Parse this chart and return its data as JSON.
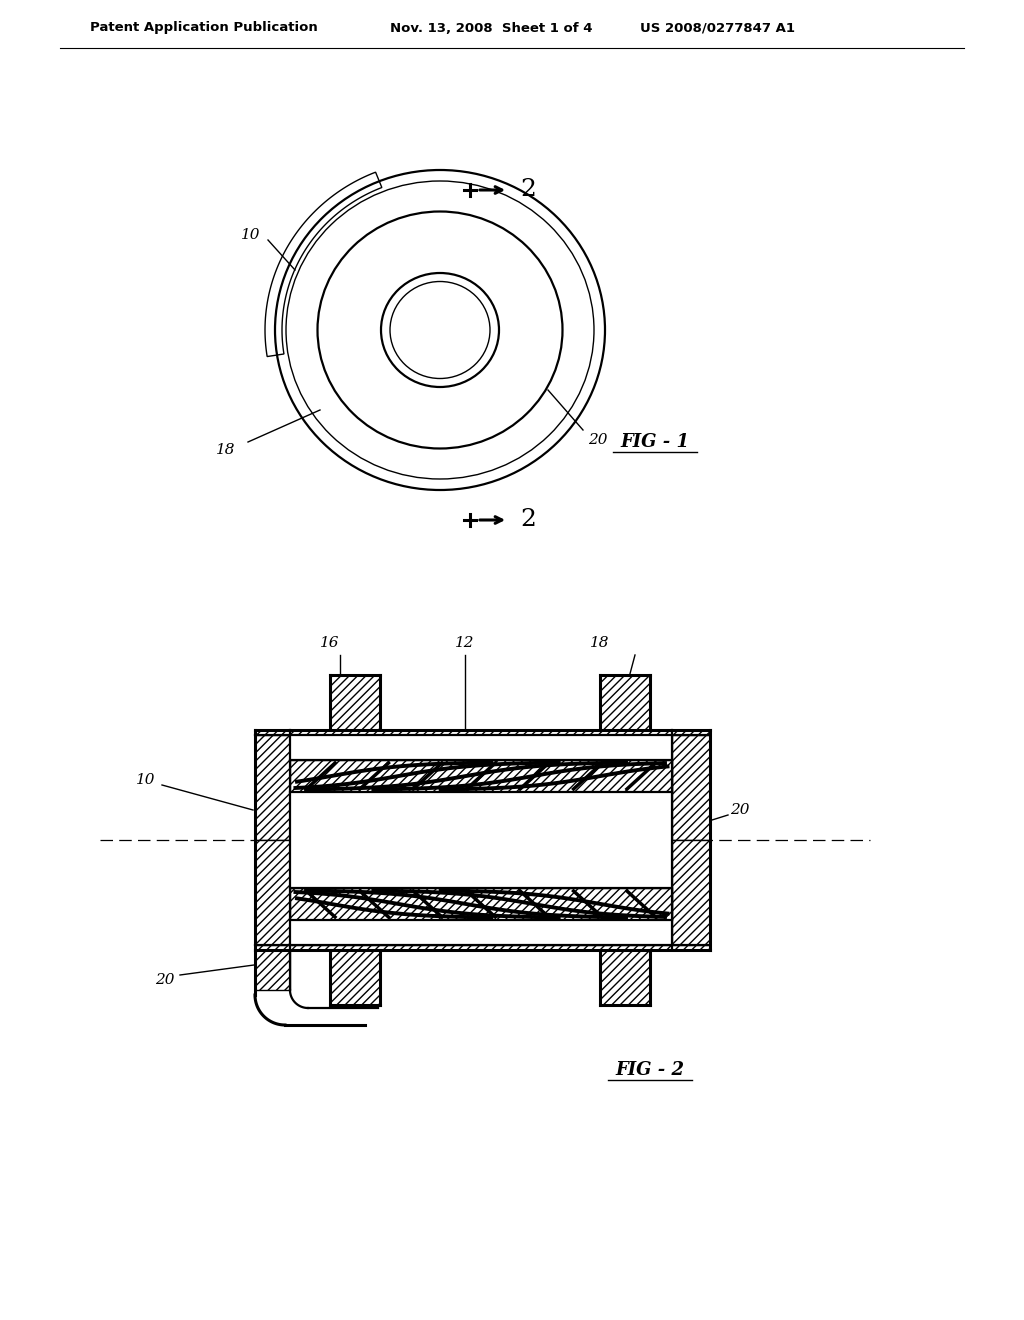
{
  "bg_color": "#ffffff",
  "header_text1": "Patent Application Publication",
  "header_text2": "Nov. 13, 2008  Sheet 1 of 4",
  "header_text3": "US 2008/0277847 A1",
  "fig1_label": "FIG - 1",
  "fig2_label": "FIG - 2",
  "lw_thin": 1.0,
  "lw_med": 1.6,
  "lw_thick": 2.2
}
